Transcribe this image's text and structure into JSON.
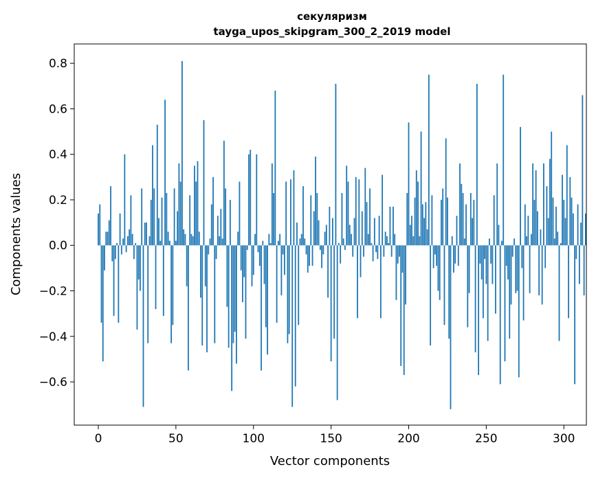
{
  "chart_data": {
    "type": "bar",
    "title": "секуляризм",
    "subtitle": "tayga_upos_skipgram_300_2_2019 model",
    "xlabel": "Vector components",
    "ylabel": "Components values",
    "xlim": [
      -15.5,
      314.5
    ],
    "ylim": [
      -0.79,
      0.885
    ],
    "xticks": [
      0,
      50,
      100,
      150,
      200,
      250,
      300
    ],
    "xtick_labels": [
      "0",
      "50",
      "100",
      "150",
      "200",
      "250",
      "300"
    ],
    "yticks": [
      -0.6,
      -0.4,
      -0.2,
      0.0,
      0.2,
      0.4,
      0.6,
      0.8
    ],
    "ytick_labels": [
      "−0.6",
      "−0.4",
      "−0.2",
      "0.0",
      "0.2",
      "0.4",
      "0.6",
      "0.8"
    ],
    "bar_color": "#1f77b4",
    "grid": false,
    "values": [
      0.14,
      0.18,
      -0.34,
      -0.51,
      -0.11,
      0.06,
      0.06,
      0.11,
      0.26,
      -0.07,
      -0.31,
      -0.06,
      0.01,
      -0.34,
      0.14,
      -0.04,
      0.03,
      0.4,
      -0.03,
      0.04,
      0.07,
      0.22,
      0.05,
      -0.06,
      0.01,
      -0.37,
      -0.15,
      -0.2,
      0.25,
      -0.71,
      0.1,
      0.1,
      -0.43,
      0.04,
      0.2,
      0.44,
      0.25,
      -0.28,
      0.53,
      0.12,
      0.02,
      0.21,
      -0.31,
      0.64,
      0.23,
      0.06,
      0.02,
      -0.43,
      -0.35,
      0.25,
      0.02,
      0.15,
      0.36,
      0.28,
      0.81,
      0.07,
      0.05,
      -0.18,
      -0.55,
      0.22,
      0.05,
      0.04,
      0.35,
      0.28,
      0.37,
      0.06,
      -0.23,
      -0.44,
      0.55,
      -0.18,
      -0.47,
      -0.04,
      0.03,
      0.18,
      0.3,
      -0.43,
      -0.06,
      0.13,
      0.04,
      0.16,
      0.03,
      0.46,
      0.25,
      -0.27,
      -0.45,
      0.2,
      -0.64,
      -0.43,
      -0.38,
      -0.52,
      0.06,
      0.28,
      -0.11,
      -0.25,
      -0.14,
      -0.41,
      -0.02,
      0.4,
      0.42,
      -0.18,
      -0.13,
      0.05,
      0.4,
      -0.03,
      -0.09,
      -0.55,
      0.02,
      -0.17,
      -0.36,
      -0.48,
      0.05,
      0.01,
      0.36,
      0.23,
      0.68,
      -0.34,
      0.02,
      0.05,
      -0.22,
      -0.04,
      -0.13,
      0.28,
      -0.43,
      -0.39,
      0.29,
      -0.71,
      0.33,
      -0.62,
      0.1,
      -0.35,
      0.03,
      0.05,
      0.26,
      0.03,
      -0.04,
      -0.12,
      -0.09,
      0.22,
      -0.09,
      0.15,
      0.39,
      0.23,
      0.11,
      -0.02,
      -0.1,
      -0.04,
      0.06,
      0.09,
      -0.23,
      0.17,
      -0.51,
      0.12,
      -0.41,
      0.71,
      -0.68,
      0.01,
      -0.08,
      0.23,
      0.03,
      -0.02,
      0.35,
      0.28,
      0.09,
      0.05,
      -0.05,
      0.12,
      0.3,
      -0.32,
      0.29,
      -0.14,
      0.15,
      -0.05,
      0.34,
      0.19,
      0.05,
      0.25,
      0.01,
      -0.07,
      0.12,
      -0.03,
      -0.06,
      0.13,
      -0.32,
      0.31,
      -0.05,
      0.06,
      0.04,
      0.01,
      0.17,
      -0.05,
      0.17,
      0.05,
      -0.24,
      -0.08,
      -0.05,
      -0.53,
      -0.12,
      -0.57,
      -0.26,
      0.23,
      0.54,
      0.09,
      0.13,
      0.04,
      0.21,
      0.33,
      0.28,
      0.04,
      0.5,
      0.18,
      0.12,
      0.19,
      0.07,
      0.75,
      -0.44,
      0.22,
      -0.1,
      -0.04,
      -0.09,
      -0.2,
      -0.24,
      0.2,
      0.25,
      -0.35,
      0.47,
      0.21,
      -0.41,
      -0.72,
      0.04,
      -0.12,
      -0.08,
      0.13,
      -0.09,
      0.36,
      0.27,
      0.23,
      0.03,
      0.18,
      -0.36,
      -0.21,
      0.23,
      0.12,
      0.2,
      -0.47,
      0.71,
      -0.57,
      -0.08,
      -0.15,
      -0.32,
      -0.06,
      -0.17,
      -0.42,
      0.03,
      -0.08,
      -0.17,
      0.22,
      -0.3,
      0.36,
      0.09,
      -0.61,
      0.02,
      0.75,
      -0.51,
      -0.09,
      -0.15,
      -0.41,
      -0.26,
      -0.05,
      0.03,
      -0.21,
      -0.2,
      -0.58,
      0.52,
      -0.1,
      -0.33,
      0.18,
      0.04,
      0.13,
      -0.21,
      0.05,
      0.36,
      0.2,
      0.33,
      0.15,
      -0.22,
      0.07,
      -0.26,
      0.36,
      -0.1,
      0.26,
      0.12,
      0.38,
      0.5,
      0.21,
      0.03,
      0.17,
      0.06,
      -0.42,
      0.01,
      0.31,
      0.2,
      0.12,
      0.44,
      -0.32,
      0.3,
      0.21,
      0.14,
      -0.61,
      -0.06,
      0.18,
      -0.17,
      0.1,
      0.66,
      -0.22,
      0.14
    ]
  }
}
